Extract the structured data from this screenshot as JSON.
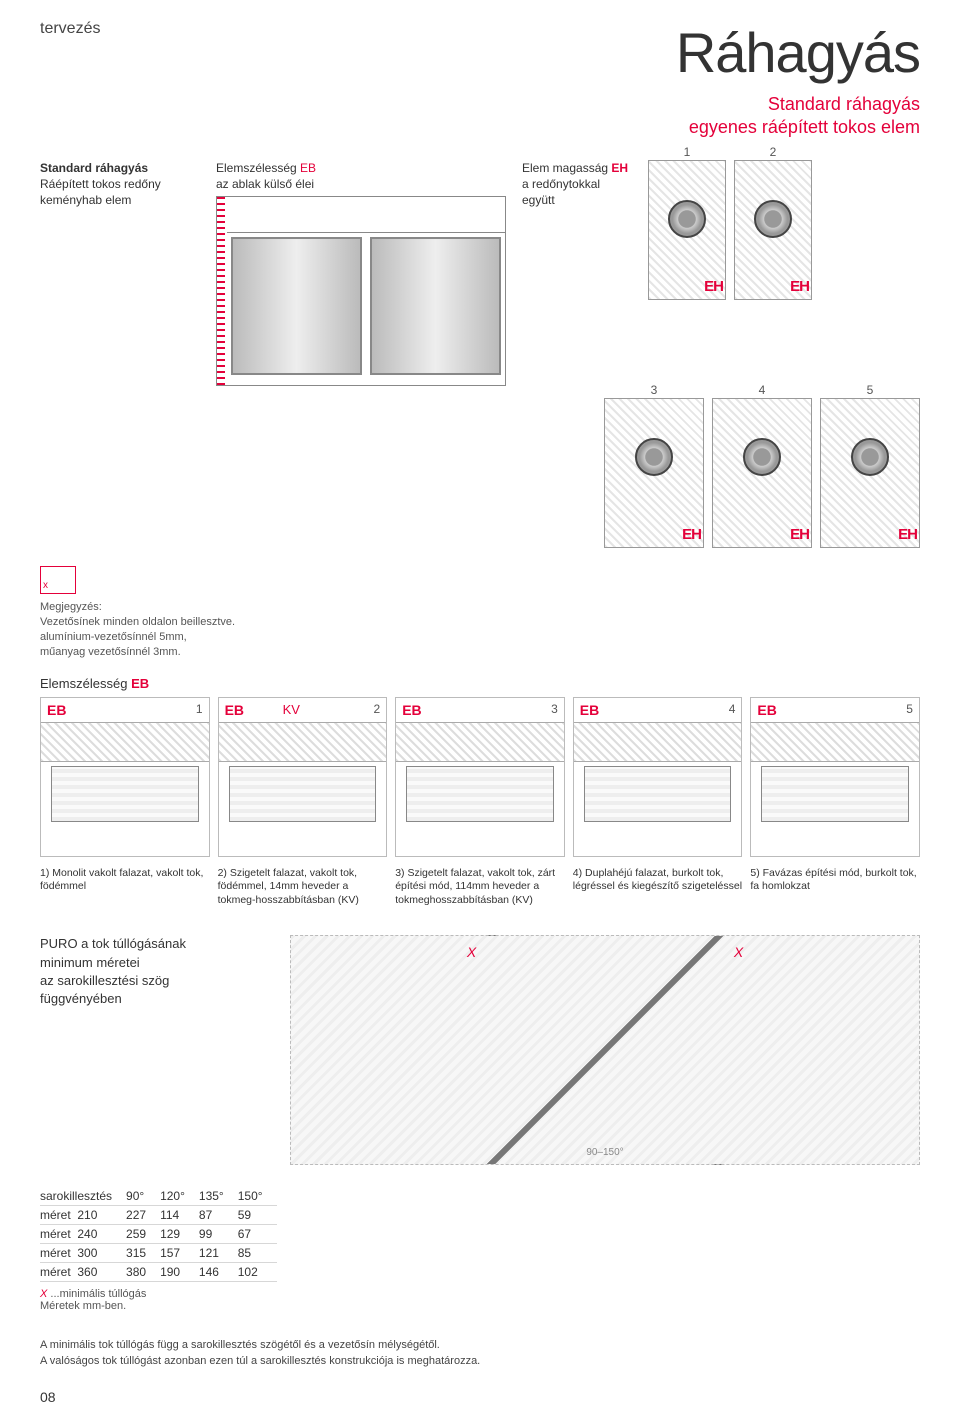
{
  "header": {
    "section": "tervezés",
    "title": "Ráhagyás",
    "subtitle_line1": "Standard ráhagyás",
    "subtitle_line2": "egyenes ráépített tokos elem"
  },
  "top": {
    "left_l1": "Standard ráhagyás",
    "left_l2": "Ráépített tokos redőny",
    "left_l3": "keményhab elem",
    "eb_l1": "Elemszélesség",
    "eb_l2": "az ablak külső élei",
    "eb_tag": "EB",
    "eh_l1": "Elem magasság",
    "eh_l2": "a redőnytokkal",
    "eh_l3": "együtt",
    "eh_tag": "EH",
    "eh_label": "EH",
    "items12": [
      "1",
      "2"
    ],
    "items345": [
      "3",
      "4",
      "5"
    ]
  },
  "note": {
    "l1": "Megjegyzés:",
    "l2": "Vezetősínek minden oldalon beillesztve.",
    "l3": "alumínium-vezetősínnél 5mm,",
    "l4": "műanyag vezetősínnél 3mm."
  },
  "eb_row": {
    "heading_prefix": "Elemszélesség",
    "heading_tag": "EB",
    "kv": "KV",
    "items": [
      "1",
      "2",
      "3",
      "4",
      "5"
    ],
    "eb_label": "EB"
  },
  "captions": {
    "c1": "1) Monolit vakolt falazat, vakolt tok, födémmel",
    "c2": "2) Szigetelt falazat, vakolt tok, födémmel, 14mm heveder a tokmeg-hosszabbításban (KV)",
    "c3": "3) Szigetelt falazat, vakolt tok, zárt építési mód, 114mm heveder a tokmeghosszabbításban (KV)",
    "c4": "4) Duplahéjú falazat, burkolt tok, légréssel és kiegészítő szigeteléssel",
    "c5": "5) Favázas építési mód, burkolt tok, fa homlokzat"
  },
  "puro": {
    "l1": "PURO a tok túllógásának",
    "l2": "minimum méretei",
    "l3": "az sarokillesztési szög",
    "l4": "függvényében",
    "x": "X",
    "angle_range": "90–150°"
  },
  "table": {
    "header_label": "sarokillesztés",
    "row_label": "méret",
    "angle_cols": [
      "90°",
      "120°",
      "135°",
      "150°"
    ],
    "sizes": [
      "210",
      "240",
      "300",
      "360"
    ],
    "rows": [
      [
        "227",
        "114",
        "87",
        "59"
      ],
      [
        "259",
        "129",
        "99",
        "67"
      ],
      [
        "315",
        "157",
        "121",
        "85"
      ],
      [
        "380",
        "190",
        "146",
        "102"
      ]
    ],
    "note_x": "X",
    "note_text": "...minimális túllógás",
    "note_units": "Méretek mm-ben."
  },
  "footnote": {
    "l1": "A minimális tok túllógás függ a sarokillesztés szögétől és a vezetősín mélységétől.",
    "l2": "A valóságos tok túllógást azonban ezen túl a sarokillesztés konstrukciója is meghatározza."
  },
  "page": "08",
  "colors": {
    "accent": "#e4003a",
    "text": "#333333",
    "muted": "#555555",
    "rule": "#d7d7d7"
  }
}
